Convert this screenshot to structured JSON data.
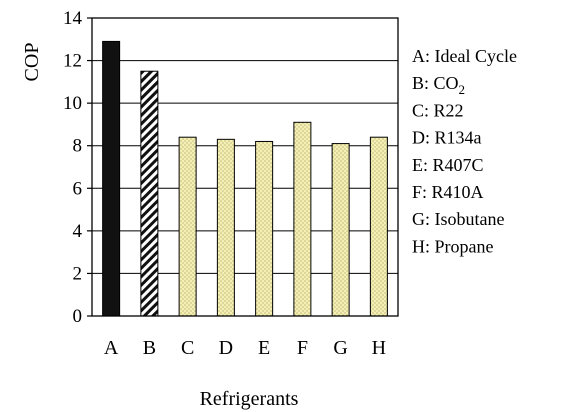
{
  "chart_data": {
    "type": "bar",
    "title": "",
    "xlabel": "Refrigerants",
    "ylabel": "COP",
    "ylim": [
      0,
      14
    ],
    "yticks": [
      0,
      2,
      4,
      6,
      8,
      10,
      12,
      14
    ],
    "grid": true,
    "legend_position": "right",
    "categories": [
      "A",
      "B",
      "C",
      "D",
      "E",
      "F",
      "G",
      "H"
    ],
    "values": [
      12.9,
      11.5,
      8.4,
      8.3,
      8.2,
      9.1,
      8.1,
      8.4
    ],
    "bar_styles": [
      "solid-black",
      "diagonal-hatch",
      "dotted",
      "dotted",
      "dotted",
      "dotted",
      "dotted",
      "dotted"
    ],
    "legend": [
      {
        "key": "A",
        "text": "A: Ideal Cycle"
      },
      {
        "key": "B",
        "text": "B: CO",
        "subscript": "2"
      },
      {
        "key": "C",
        "text": "C: R22"
      },
      {
        "key": "D",
        "text": "D: R134a"
      },
      {
        "key": "E",
        "text": "E: R407C"
      },
      {
        "key": "F",
        "text": "F: R410A"
      },
      {
        "key": "G",
        "text": "G: Isobutane"
      },
      {
        "key": "H",
        "text": "H: Propane"
      }
    ],
    "colors": {
      "solid": "#111111",
      "dotted_fill": "#f6f0b0",
      "dot": "#9a9a70",
      "grid": "#000000"
    }
  }
}
